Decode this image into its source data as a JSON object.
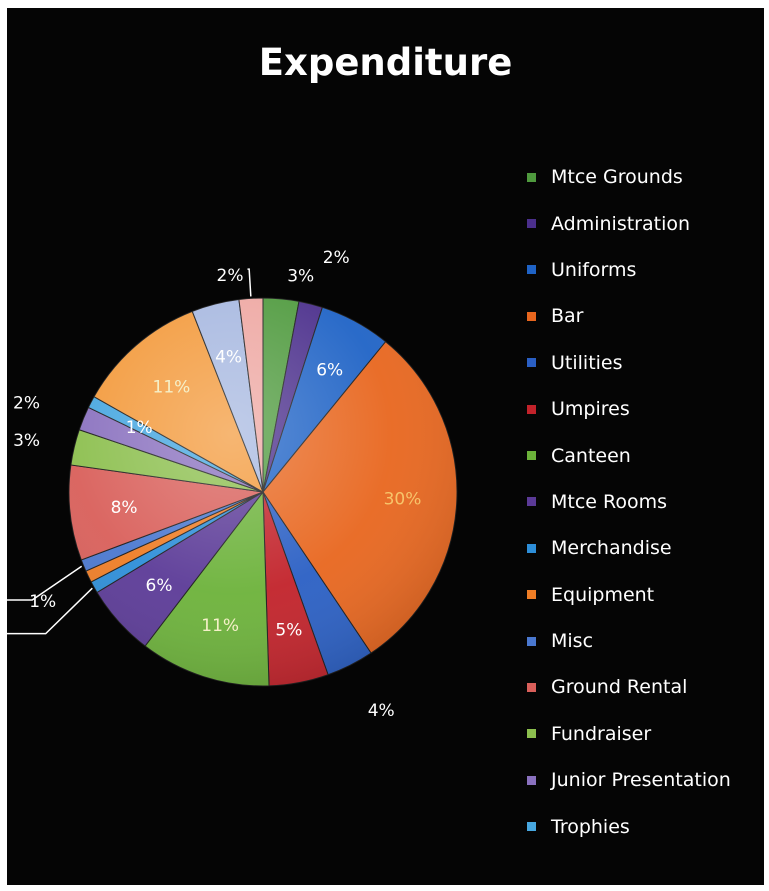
{
  "chart_data": {
    "type": "pie",
    "title": "Expenditure",
    "legend_position": "right",
    "slices": [
      {
        "label": "Mtce Grounds",
        "value": 3,
        "display": "3%",
        "color": "#4f9a3e"
      },
      {
        "label": "Administration",
        "value": 2,
        "display": "2%",
        "color": "#4b2f8c"
      },
      {
        "label": "Uniforms",
        "value": 6,
        "display": "6%",
        "color": "#1f63c6"
      },
      {
        "label": "Bar",
        "value": 30,
        "display": "30%",
        "color": "#e8661e"
      },
      {
        "label": "Utilities",
        "value": 4,
        "display": "4%",
        "color": "#2a5fc4"
      },
      {
        "label": "Umpires",
        "value": 5,
        "display": "5%",
        "color": "#c2222a"
      },
      {
        "label": "Canteen",
        "value": 11,
        "display": "11%",
        "color": "#6cb23a"
      },
      {
        "label": "Mtce Rooms",
        "value": 6,
        "display": "6%",
        "color": "#5b3a97"
      },
      {
        "label": "Merchandise",
        "value": 1,
        "display": "1%",
        "color": "#2d8ed9"
      },
      {
        "label": "Equipment",
        "value": 1,
        "display": "1%",
        "color": "#ef7d25"
      },
      {
        "label": "Misc",
        "value": 1,
        "display": "1%",
        "color": "#4a78d0"
      },
      {
        "label": "Ground Rental",
        "value": 8,
        "display": "8%",
        "color": "#d95f5a"
      },
      {
        "label": "Fundraiser",
        "value": 3,
        "display": "3%",
        "color": "#8cbf4e"
      },
      {
        "label": "Junior Presentation",
        "value": 2,
        "display": "2%",
        "color": "#8a71bf"
      },
      {
        "label": "Trophies",
        "value": 1,
        "display": "1%",
        "color": "#47a7e0"
      },
      {
        "label": "",
        "value": 11,
        "display": "11%",
        "color": "#f39a3c"
      },
      {
        "label": "",
        "value": 4,
        "display": "4%",
        "color": "#a7b8e0"
      },
      {
        "label": "",
        "value": 2,
        "display": "2%",
        "color": "#eea7a2"
      }
    ]
  }
}
